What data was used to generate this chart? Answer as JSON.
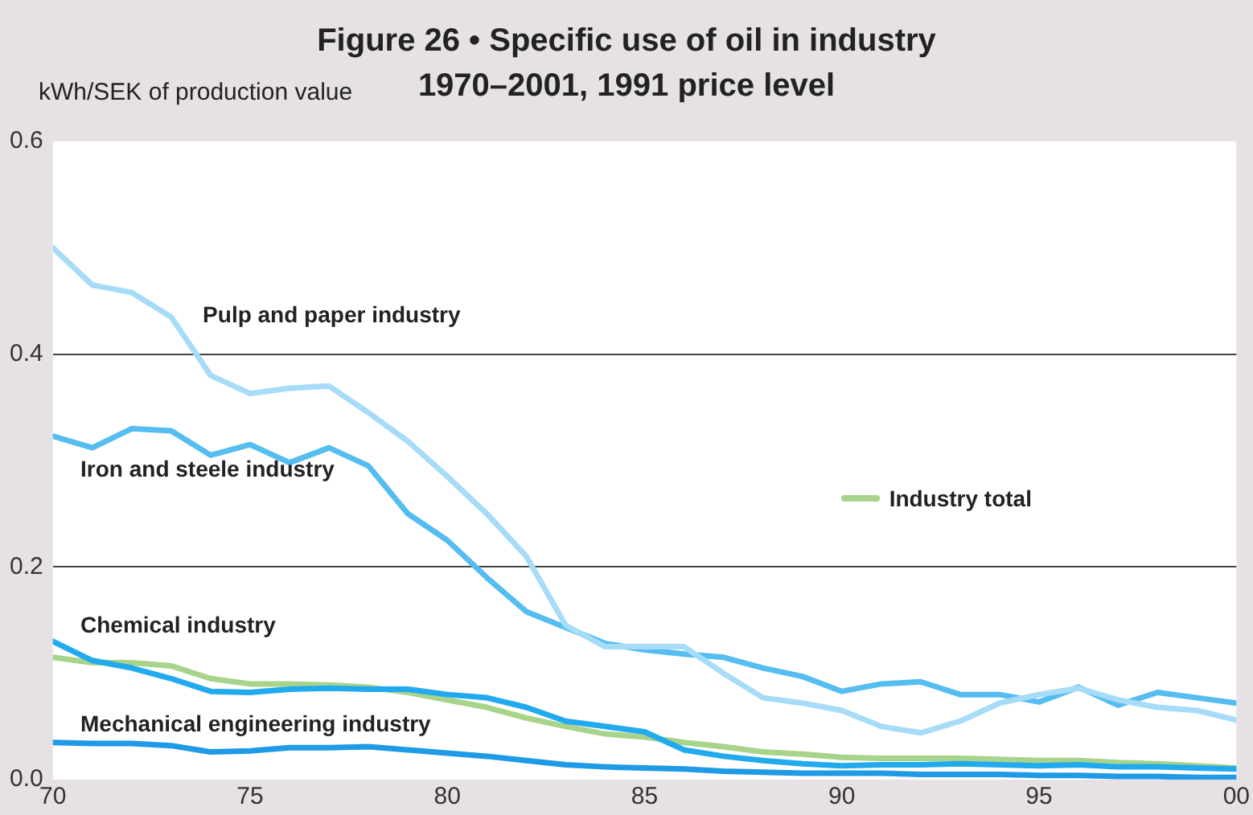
{
  "chart_data": {
    "type": "line",
    "title": "Figure 26 • Specific use of oil in industry",
    "subtitle": "1970–2001, 1991 price level",
    "ylabel": "kWh/SEK of production value",
    "x": [
      1970,
      1971,
      1972,
      1973,
      1974,
      1975,
      1976,
      1977,
      1978,
      1979,
      1980,
      1981,
      1982,
      1983,
      1984,
      1985,
      1986,
      1987,
      1988,
      1989,
      1990,
      1991,
      1992,
      1993,
      1994,
      1995,
      1996,
      1997,
      1998,
      1999,
      2000
    ],
    "series": [
      {
        "name": "Pulp and paper industry",
        "color": "#a6dcf8",
        "values": [
          0.5,
          0.465,
          0.458,
          0.435,
          0.38,
          0.363,
          0.368,
          0.37,
          0.345,
          0.318,
          0.285,
          0.25,
          0.21,
          0.145,
          0.125,
          0.125,
          0.125,
          0.1,
          0.077,
          0.072,
          0.065,
          0.05,
          0.044,
          0.055,
          0.072,
          0.08,
          0.086,
          0.075,
          0.068,
          0.065,
          0.056
        ]
      },
      {
        "name": "Iron and steele industry",
        "color": "#55bdf0",
        "values": [
          0.323,
          0.312,
          0.33,
          0.328,
          0.305,
          0.315,
          0.298,
          0.312,
          0.295,
          0.25,
          0.225,
          0.19,
          0.158,
          0.143,
          0.128,
          0.122,
          0.118,
          0.115,
          0.105,
          0.097,
          0.083,
          0.09,
          0.092,
          0.08,
          0.08,
          0.073,
          0.087,
          0.07,
          0.082,
          0.077,
          0.072
        ]
      },
      {
        "name": "Chemical industry",
        "color": "#22aaee",
        "values": [
          0.13,
          0.112,
          0.105,
          0.095,
          0.083,
          0.082,
          0.085,
          0.086,
          0.085,
          0.085,
          0.08,
          0.077,
          0.068,
          0.055,
          0.05,
          0.045,
          0.028,
          0.022,
          0.018,
          0.015,
          0.013,
          0.014,
          0.014,
          0.015,
          0.014,
          0.013,
          0.014,
          0.012,
          0.012,
          0.011,
          0.01
        ]
      },
      {
        "name": "Industry total",
        "color": "#a8d38a",
        "values": [
          0.115,
          0.11,
          0.11,
          0.107,
          0.095,
          0.09,
          0.09,
          0.089,
          0.087,
          0.082,
          0.075,
          0.068,
          0.058,
          0.05,
          0.043,
          0.04,
          0.035,
          0.031,
          0.026,
          0.024,
          0.021,
          0.02,
          0.02,
          0.02,
          0.019,
          0.018,
          0.018,
          0.016,
          0.015,
          0.013,
          0.011
        ]
      },
      {
        "name": "Mechanical engineering industry",
        "color": "#1f9ae6",
        "values": [
          0.035,
          0.034,
          0.034,
          0.032,
          0.026,
          0.027,
          0.03,
          0.03,
          0.031,
          0.028,
          0.025,
          0.022,
          0.018,
          0.014,
          0.012,
          0.011,
          0.01,
          0.008,
          0.007,
          0.006,
          0.006,
          0.006,
          0.005,
          0.005,
          0.005,
          0.004,
          0.004,
          0.003,
          0.003,
          0.002,
          0.002
        ]
      }
    ],
    "xlim": [
      1970,
      2000
    ],
    "xticks": [
      {
        "value": 1970,
        "label": "70"
      },
      {
        "value": 1975,
        "label": "75"
      },
      {
        "value": 1980,
        "label": "80"
      },
      {
        "value": 1985,
        "label": "85"
      },
      {
        "value": 1990,
        "label": "90"
      },
      {
        "value": 1995,
        "label": "95"
      },
      {
        "value": 2000,
        "label": "00"
      }
    ],
    "ylim": [
      0,
      0.6
    ],
    "yticks": [
      {
        "value": 0,
        "label": "0.0"
      },
      0.2,
      0.4,
      0.6
    ],
    "grid": "y",
    "legend": "right",
    "marker": "none",
    "line_style": "solid"
  }
}
